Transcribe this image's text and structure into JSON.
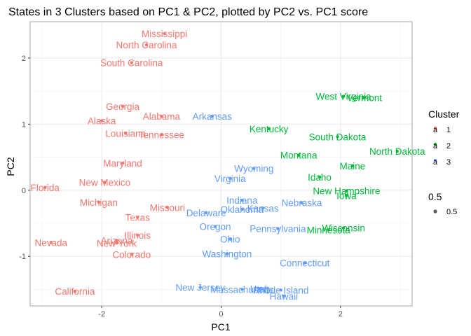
{
  "chart_data": {
    "type": "scatter",
    "title": "States in 3 Clusters based on PC1 & PC2, plotted by PC2 vs. PC1 score",
    "xlabel": "PC1",
    "ylabel": "PC2",
    "xlim": [
      -3.2,
      3.2
    ],
    "ylim": [
      -1.75,
      2.55
    ],
    "x_ticks": [
      -2,
      0,
      2
    ],
    "y_ticks": [
      -1,
      0,
      1,
      2
    ],
    "grid": true,
    "legend_placement": "right",
    "cluster_legend": {
      "title": "Cluster",
      "entries": [
        {
          "key": "1",
          "label": "1",
          "glyph": "a",
          "color": "#f8766d"
        },
        {
          "key": "2",
          "label": "2",
          "glyph": "a",
          "color": "#00ba38"
        },
        {
          "key": "3",
          "label": "3",
          "glyph": "a",
          "color": "#619cff"
        }
      ]
    },
    "size_legend": {
      "title": "0.5",
      "entries": [
        {
          "label": "0.5",
          "color": "#595959"
        }
      ]
    },
    "points": [
      {
        "name": "Mississippi",
        "x": -0.95,
        "y": 2.37,
        "cluster": "1"
      },
      {
        "name": "North Carolina",
        "x": -1.25,
        "y": 2.2,
        "cluster": "1"
      },
      {
        "name": "South Carolina",
        "x": -1.5,
        "y": 1.93,
        "cluster": "1"
      },
      {
        "name": "Georgia",
        "x": -1.65,
        "y": 1.27,
        "cluster": "1"
      },
      {
        "name": "Alabama",
        "x": -1.0,
        "y": 1.12,
        "cluster": "1"
      },
      {
        "name": "Alaska",
        "x": -2.0,
        "y": 1.05,
        "cluster": "1"
      },
      {
        "name": "Louisiana",
        "x": -1.6,
        "y": 0.86,
        "cluster": "1"
      },
      {
        "name": "Tennessee",
        "x": -1.0,
        "y": 0.84,
        "cluster": "1"
      },
      {
        "name": "Maryland",
        "x": -1.65,
        "y": 0.41,
        "cluster": "1"
      },
      {
        "name": "New Mexico",
        "x": -1.95,
        "y": 0.12,
        "cluster": "1"
      },
      {
        "name": "Florida",
        "x": -2.95,
        "y": 0.04,
        "cluster": "1"
      },
      {
        "name": "Michigan",
        "x": -2.05,
        "y": -0.18,
        "cluster": "1"
      },
      {
        "name": "Missouri",
        "x": -0.9,
        "y": -0.26,
        "cluster": "1"
      },
      {
        "name": "Texas",
        "x": -1.4,
        "y": -0.41,
        "cluster": "1"
      },
      {
        "name": "Illinois",
        "x": -1.4,
        "y": -0.68,
        "cluster": "1"
      },
      {
        "name": "Arizona",
        "x": -1.75,
        "y": -0.76,
        "cluster": "1"
      },
      {
        "name": "New York",
        "x": -1.75,
        "y": -0.8,
        "cluster": "1"
      },
      {
        "name": "Nevada",
        "x": -2.85,
        "y": -0.79,
        "cluster": "1"
      },
      {
        "name": "Colorado",
        "x": -1.5,
        "y": -0.97,
        "cluster": "1"
      },
      {
        "name": "California",
        "x": -2.45,
        "y": -1.53,
        "cluster": "1"
      },
      {
        "name": "West Virginia",
        "x": 2.05,
        "y": 1.42,
        "cluster": "2"
      },
      {
        "name": "Vermont",
        "x": 2.4,
        "y": 1.4,
        "cluster": "2"
      },
      {
        "name": "Kentucky",
        "x": 0.8,
        "y": 0.93,
        "cluster": "2"
      },
      {
        "name": "South Dakota",
        "x": 1.95,
        "y": 0.81,
        "cluster": "2"
      },
      {
        "name": "North Dakota",
        "x": 2.95,
        "y": 0.59,
        "cluster": "2"
      },
      {
        "name": "Montana",
        "x": 1.3,
        "y": 0.53,
        "cluster": "2"
      },
      {
        "name": "Maine",
        "x": 2.2,
        "y": 0.37,
        "cluster": "2"
      },
      {
        "name": "Idaho",
        "x": 1.65,
        "y": 0.2,
        "cluster": "2"
      },
      {
        "name": "New Hampshire",
        "x": 2.1,
        "y": -0.01,
        "cluster": "2"
      },
      {
        "name": "Iowa",
        "x": 2.1,
        "y": -0.08,
        "cluster": "2"
      },
      {
        "name": "Minnesota",
        "x": 1.8,
        "y": -0.6,
        "cluster": "2"
      },
      {
        "name": "Wisconsin",
        "x": 2.05,
        "y": -0.57,
        "cluster": "2"
      },
      {
        "name": "Arkansas",
        "x": -0.15,
        "y": 1.12,
        "cluster": "3"
      },
      {
        "name": "Wyoming",
        "x": 0.55,
        "y": 0.33,
        "cluster": "3"
      },
      {
        "name": "Virginia",
        "x": 0.15,
        "y": 0.18,
        "cluster": "3"
      },
      {
        "name": "Indiana",
        "x": 0.35,
        "y": -0.15,
        "cluster": "3"
      },
      {
        "name": "Nebraska",
        "x": 1.35,
        "y": -0.19,
        "cluster": "3"
      },
      {
        "name": "Kansas",
        "x": 0.7,
        "y": -0.27,
        "cluster": "3"
      },
      {
        "name": "Oklahoma",
        "x": 0.35,
        "y": -0.29,
        "cluster": "3"
      },
      {
        "name": "Delaware",
        "x": -0.25,
        "y": -0.34,
        "cluster": "3"
      },
      {
        "name": "Oregon",
        "x": -0.1,
        "y": -0.55,
        "cluster": "3"
      },
      {
        "name": "Pennsylvania",
        "x": 0.95,
        "y": -0.58,
        "cluster": "3"
      },
      {
        "name": "Ohio",
        "x": 0.15,
        "y": -0.74,
        "cluster": "3"
      },
      {
        "name": "Washington",
        "x": 0.1,
        "y": -0.96,
        "cluster": "3"
      },
      {
        "name": "Connecticut",
        "x": 1.4,
        "y": -1.1,
        "cluster": "3"
      },
      {
        "name": "New Jersey",
        "x": -0.35,
        "y": -1.47,
        "cluster": "3"
      },
      {
        "name": "Massachusetts",
        "x": 0.35,
        "y": -1.5,
        "cluster": "3"
      },
      {
        "name": "Utah",
        "x": 0.65,
        "y": -1.49,
        "cluster": "3"
      },
      {
        "name": "Rhode Island",
        "x": 1.0,
        "y": -1.51,
        "cluster": "3"
      },
      {
        "name": "Hawaii",
        "x": 1.05,
        "y": -1.6,
        "cluster": "3"
      }
    ]
  }
}
